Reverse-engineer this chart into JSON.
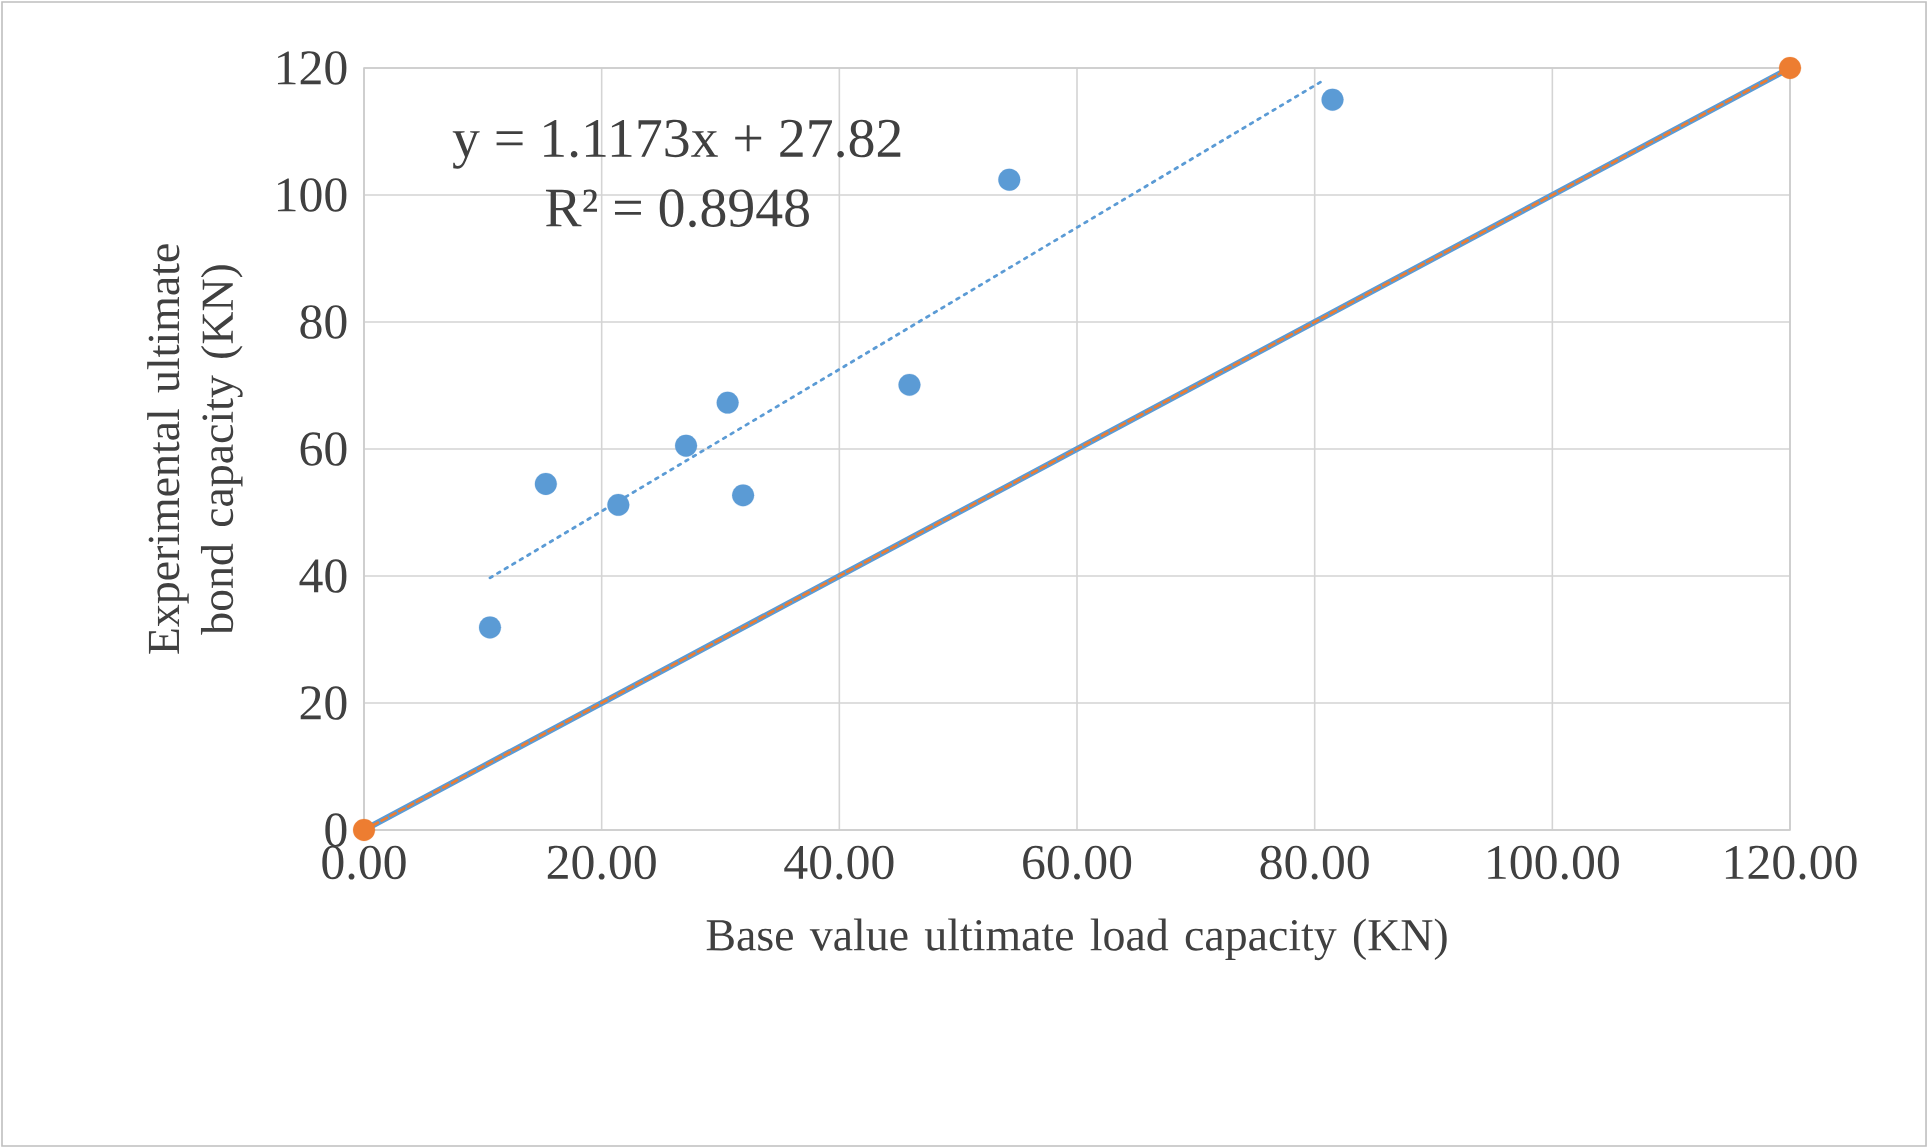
{
  "chart_data": {
    "type": "scatter",
    "xlabel": "Base value ultimate load capacity (KN)",
    "ylabel": "Experimental ultimate bond capacity (KN)",
    "annotations": [
      "y = 1.1173x + 27.82",
      "R² = 0.8948"
    ],
    "series": [
      {
        "color": "#5b9bd5",
        "marker": "circle",
        "x": [
          10.6,
          15.3,
          21.4,
          27.1,
          30.6,
          31.9,
          45.9,
          54.3,
          81.5
        ],
        "values": [
          31.9,
          54.5,
          51.2,
          60.5,
          67.3,
          52.7,
          70.1,
          102.4,
          115.0
        ]
      },
      {
        "type": "line",
        "color": "#5b9bd5",
        "line_style": "dotted",
        "marker": "none",
        "x": [
          10.6,
          80.6
        ],
        "values": [
          39.7,
          117.9
        ]
      },
      {
        "type": "line",
        "color": "#5b9bd5",
        "line_style": "solid",
        "marker": "none",
        "x": [
          0,
          120
        ],
        "values": [
          0,
          120
        ]
      },
      {
        "type": "line",
        "color": "#ed7d31",
        "line_style": "dashed",
        "marker": "circle",
        "x": [
          0,
          120
        ],
        "values": [
          0,
          120
        ]
      }
    ],
    "xlim": [
      0,
      120
    ],
    "ylim": [
      0,
      120
    ],
    "xticks": [
      {
        "value": 0,
        "label": "0.00"
      },
      {
        "value": 20,
        "label": "20.00"
      },
      {
        "value": 40,
        "label": "40.00"
      },
      {
        "value": 60,
        "label": "60.00"
      },
      {
        "value": 80,
        "label": "80.00"
      },
      {
        "value": 100,
        "label": "100.00"
      },
      {
        "value": 120,
        "label": "120.00"
      }
    ],
    "yticks": [
      0,
      20,
      40,
      60,
      80,
      100,
      120
    ],
    "grid": true
  }
}
